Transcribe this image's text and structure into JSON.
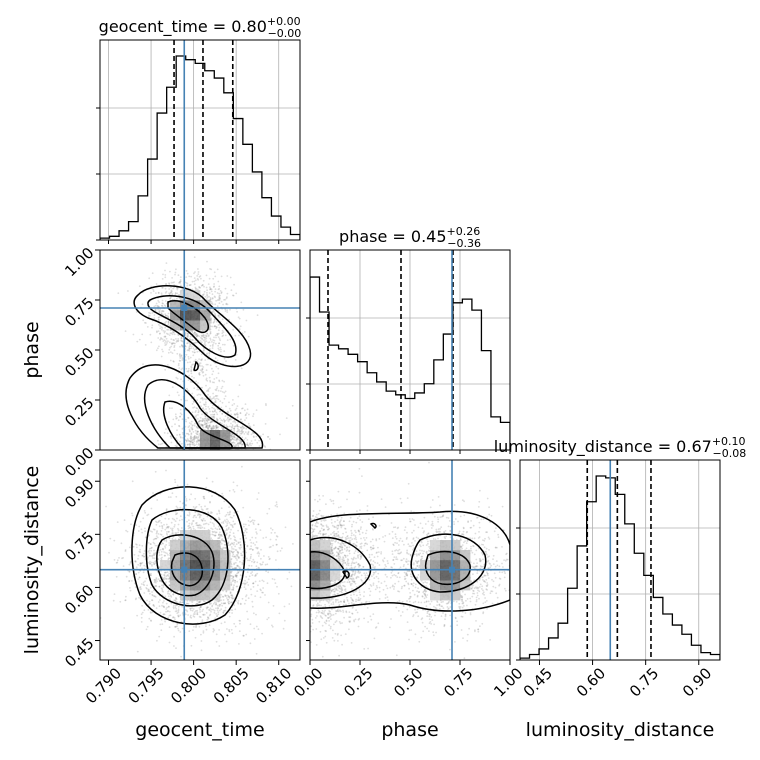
{
  "chart_data": {
    "type": "corner",
    "parameters": [
      "geocent_time",
      "phase",
      "luminosity_distance"
    ],
    "xlabels": [
      "geocent_time",
      "phase",
      "luminosity_distance"
    ],
    "ylabels": [
      "",
      "phase",
      "luminosity_distance"
    ],
    "titles": [
      {
        "text": "geocent_time = 0.80",
        "plus": "+0.00",
        "minus": "−0.00"
      },
      {
        "text": "phase = 0.45",
        "plus": "+0.26",
        "minus": "−0.36"
      },
      {
        "text": "luminosity_distance = 0.67",
        "plus": "+0.10",
        "minus": "−0.08"
      }
    ],
    "ranges": [
      [
        0.789,
        0.8125
      ],
      [
        0.0,
        1.0
      ],
      [
        0.395,
        0.96
      ]
    ],
    "ticks": [
      [
        "0.790",
        "0.795",
        "0.800",
        "0.805",
        "0.810"
      ],
      [
        "0.00",
        "0.25",
        "0.50",
        "0.75",
        "1.00"
      ],
      [
        "0.45",
        "0.60",
        "0.75",
        "0.90"
      ]
    ],
    "truths": [
      0.7989,
      0.71,
      0.65
    ],
    "quantiles": [
      [
        0.7977,
        0.8011,
        0.8046
      ],
      [
        0.09,
        0.455,
        0.715
      ],
      [
        0.585,
        0.67,
        0.765
      ]
    ],
    "histograms": [
      {
        "counts": [
          0.01,
          0.02,
          0.05,
          0.1,
          0.24,
          0.44,
          0.69,
          0.83,
          1.0,
          0.98,
          0.96,
          0.92,
          0.88,
          0.8,
          0.66,
          0.52,
          0.37,
          0.23,
          0.13,
          0.07,
          0.03
        ]
      },
      {
        "counts": [
          0.94,
          0.75,
          0.57,
          0.55,
          0.52,
          0.48,
          0.42,
          0.37,
          0.32,
          0.3,
          0.28,
          0.31,
          0.36,
          0.49,
          0.63,
          0.8,
          0.82,
          0.76,
          0.54,
          0.18,
          0.15
        ]
      },
      {
        "counts": [
          0.01,
          0.03,
          0.06,
          0.12,
          0.2,
          0.39,
          0.62,
          0.86,
          1.0,
          0.99,
          0.9,
          0.74,
          0.58,
          0.46,
          0.34,
          0.25,
          0.19,
          0.14,
          0.08,
          0.04,
          0.03
        ]
      }
    ],
    "grid": true
  }
}
